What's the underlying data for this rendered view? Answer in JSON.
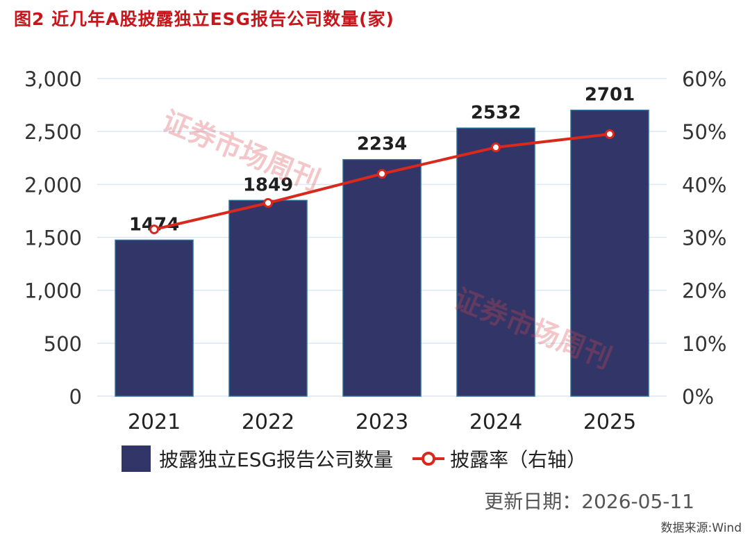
{
  "title": "图2  近几年A股披露独立ESG报告公司数量(家)",
  "watermark": "证券市场周刊",
  "update_text": "更新日期：2026-05-11",
  "source_text": "数据来源:Wind",
  "colors": {
    "title": "#c8161d",
    "bar": "#323567",
    "line": "#d9291c",
    "grid": "#dbe7f3"
  },
  "chart_data": {
    "type": "bar",
    "categories": [
      "2021",
      "2022",
      "2023",
      "2024",
      "2025"
    ],
    "series": [
      {
        "name": "披露独立ESG报告公司数量",
        "type": "bar",
        "axis": "left",
        "values": [
          1474,
          1849,
          2234,
          2532,
          2701
        ],
        "data_labels": [
          "1474",
          "1849",
          "2234",
          "2532",
          "2701"
        ]
      },
      {
        "name": "披露率（右轴）",
        "type": "line",
        "axis": "right",
        "values": [
          31.5,
          36.5,
          42.0,
          47.0,
          49.5
        ]
      }
    ],
    "y_left": {
      "range": [
        0,
        3000
      ],
      "ticks": [
        0,
        500,
        1000,
        1500,
        2000,
        2500,
        3000
      ],
      "tick_labels": [
        "0",
        "500",
        "1,000",
        "1,500",
        "2,000",
        "2,500",
        "3,000"
      ]
    },
    "y_right": {
      "range": [
        0,
        60
      ],
      "ticks": [
        0,
        10,
        20,
        30,
        40,
        50,
        60
      ],
      "tick_labels": [
        "0%",
        "10%",
        "20%",
        "30%",
        "40%",
        "50%",
        "60%"
      ]
    },
    "grid": true,
    "legend": "bottom"
  }
}
